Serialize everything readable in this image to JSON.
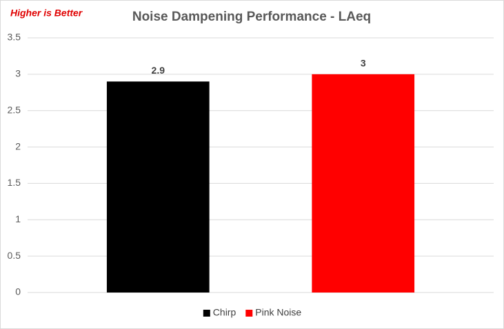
{
  "chart_data": {
    "type": "bar",
    "title": "Noise Dampening Performance - LAeq",
    "annotation": "Higher is Better",
    "categories": [
      null
    ],
    "series": [
      {
        "name": "Chirp",
        "color": "#000000",
        "values": [
          2.9
        ]
      },
      {
        "name": "Pink Noise",
        "color": "#ff0000",
        "values": [
          3
        ]
      }
    ],
    "ylim": [
      0,
      3.5
    ],
    "yticks": [
      0,
      0.5,
      1,
      1.5,
      2,
      2.5,
      3,
      3.5
    ],
    "grid": true,
    "legend": "bottom"
  }
}
